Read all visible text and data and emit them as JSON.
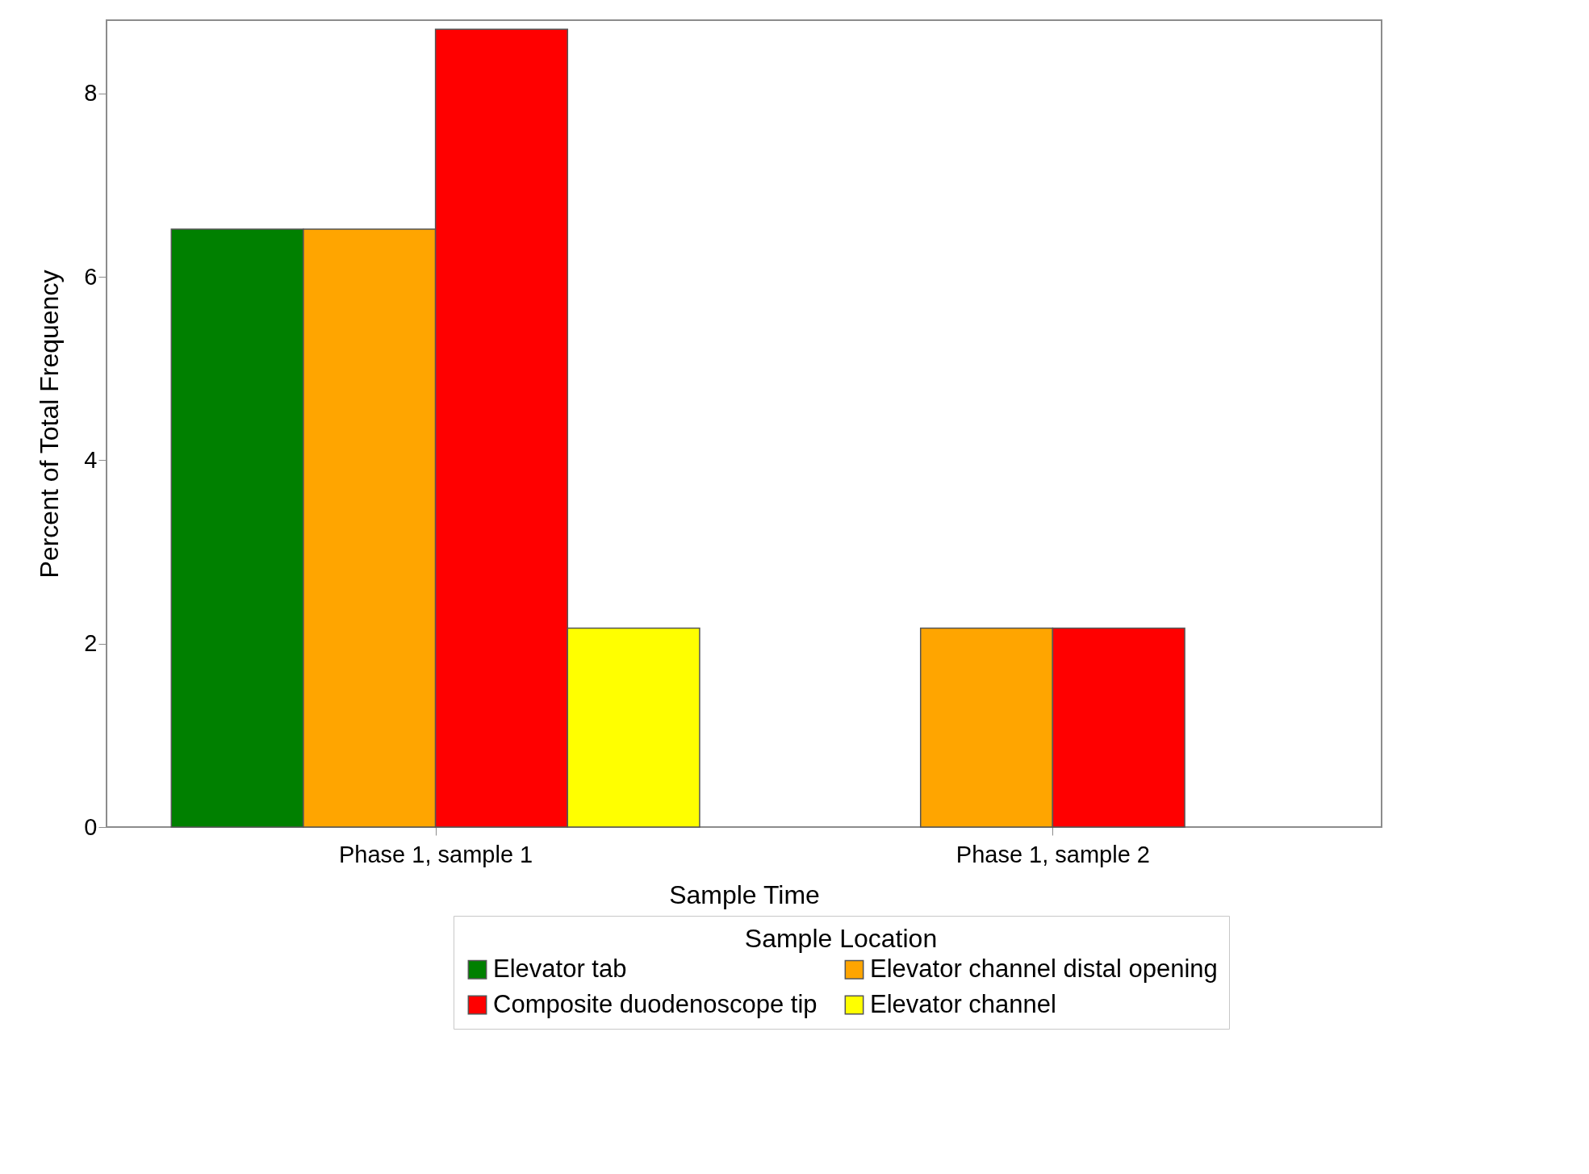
{
  "chart_data": {
    "type": "bar",
    "xlabel": "Sample Time",
    "ylabel": "Percent of Total Frequency",
    "legend_title": "Sample Location",
    "categories": [
      "Phase 1, sample 1",
      "Phase 1, sample 2"
    ],
    "series": [
      {
        "name": "Elevator tab",
        "color": "#008000",
        "values": [
          6.52,
          null
        ]
      },
      {
        "name": "Elevator channel distal opening",
        "color": "#ffa500",
        "values": [
          6.52,
          2.17
        ]
      },
      {
        "name": "Composite duodenoscope tip",
        "color": "#ff0000",
        "values": [
          8.7,
          2.17
        ]
      },
      {
        "name": "Elevator channel",
        "color": "#ffff00",
        "values": [
          2.17,
          null
        ]
      }
    ],
    "ylim": [
      0,
      8.8
    ],
    "yticks": [
      0,
      2,
      4,
      6,
      8
    ],
    "grid": false,
    "legend": "bottom"
  }
}
